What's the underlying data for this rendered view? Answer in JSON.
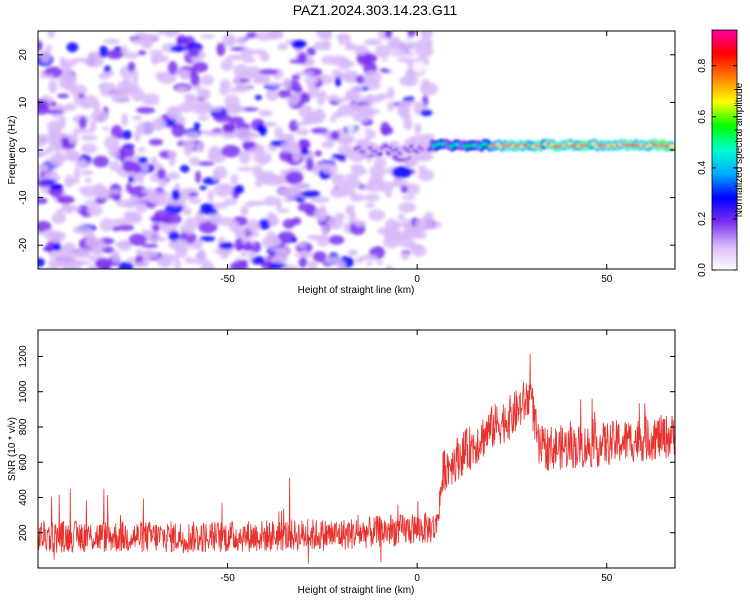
{
  "title": "PAZ1.2024.303.14.23.G11",
  "chart_data": [
    {
      "type": "heatmap",
      "xlabel": "Height of straight line (km)",
      "ylabel": "Frequency (Hz)",
      "xlim": [
        -100,
        68
      ],
      "ylim": [
        -25,
        25
      ],
      "xticks": [
        "-50",
        "0",
        "50"
      ],
      "yticks": [
        "-20",
        "-10",
        "0",
        "10",
        "20"
      ],
      "colorbar": {
        "label": "Normalized spectral amplitude",
        "range": [
          0,
          0.94
        ],
        "ticks": [
          "0.0",
          "0.2",
          "0.4",
          "0.6",
          "0.8"
        ],
        "colors": [
          "#ffffff",
          "#d8b8f8",
          "#7a2ff0",
          "#0000ff",
          "#00aaff",
          "#00ffd0",
          "#00ff00",
          "#ffff00",
          "#ff8000",
          "#ff0000",
          "#ff00a0"
        ]
      },
      "features": [
        {
          "from_km": -100,
          "to_km": 4,
          "description": "diffuse low-amplitude noise across all frequencies"
        },
        {
          "from_km": -16,
          "to_km": 4,
          "freq_hz": 0,
          "amplitude": 0.2
        },
        {
          "from_km": 4,
          "to_km": 20,
          "freq_hz": 1,
          "amplitude": 0.5
        },
        {
          "from_km": 20,
          "to_km": 68,
          "freq_hz": 1,
          "amplitude": 0.8
        }
      ]
    },
    {
      "type": "line",
      "xlabel": "Height of straight line (km)",
      "ylabel": "SNR (10 * v/v)",
      "xlim": [
        -100,
        68
      ],
      "ylim": [
        0,
        1350
      ],
      "xticks": [
        "-50",
        "0",
        "50"
      ],
      "yticks": [
        "200",
        "400",
        "600",
        "800",
        "1000",
        "1200"
      ],
      "color": "#e8302c",
      "profile": [
        {
          "x": -100,
          "y": 180
        },
        {
          "x": -60,
          "y": 175
        },
        {
          "x": -20,
          "y": 190
        },
        {
          "x": 5,
          "y": 230
        },
        {
          "x": 7,
          "y": 560
        },
        {
          "x": 15,
          "y": 700
        },
        {
          "x": 20,
          "y": 800
        },
        {
          "x": 25,
          "y": 860
        },
        {
          "x": 30,
          "y": 980
        },
        {
          "x": 32,
          "y": 680
        },
        {
          "x": 45,
          "y": 690
        },
        {
          "x": 55,
          "y": 720
        },
        {
          "x": 68,
          "y": 750
        }
      ],
      "noise_amplitude": 90
    }
  ]
}
